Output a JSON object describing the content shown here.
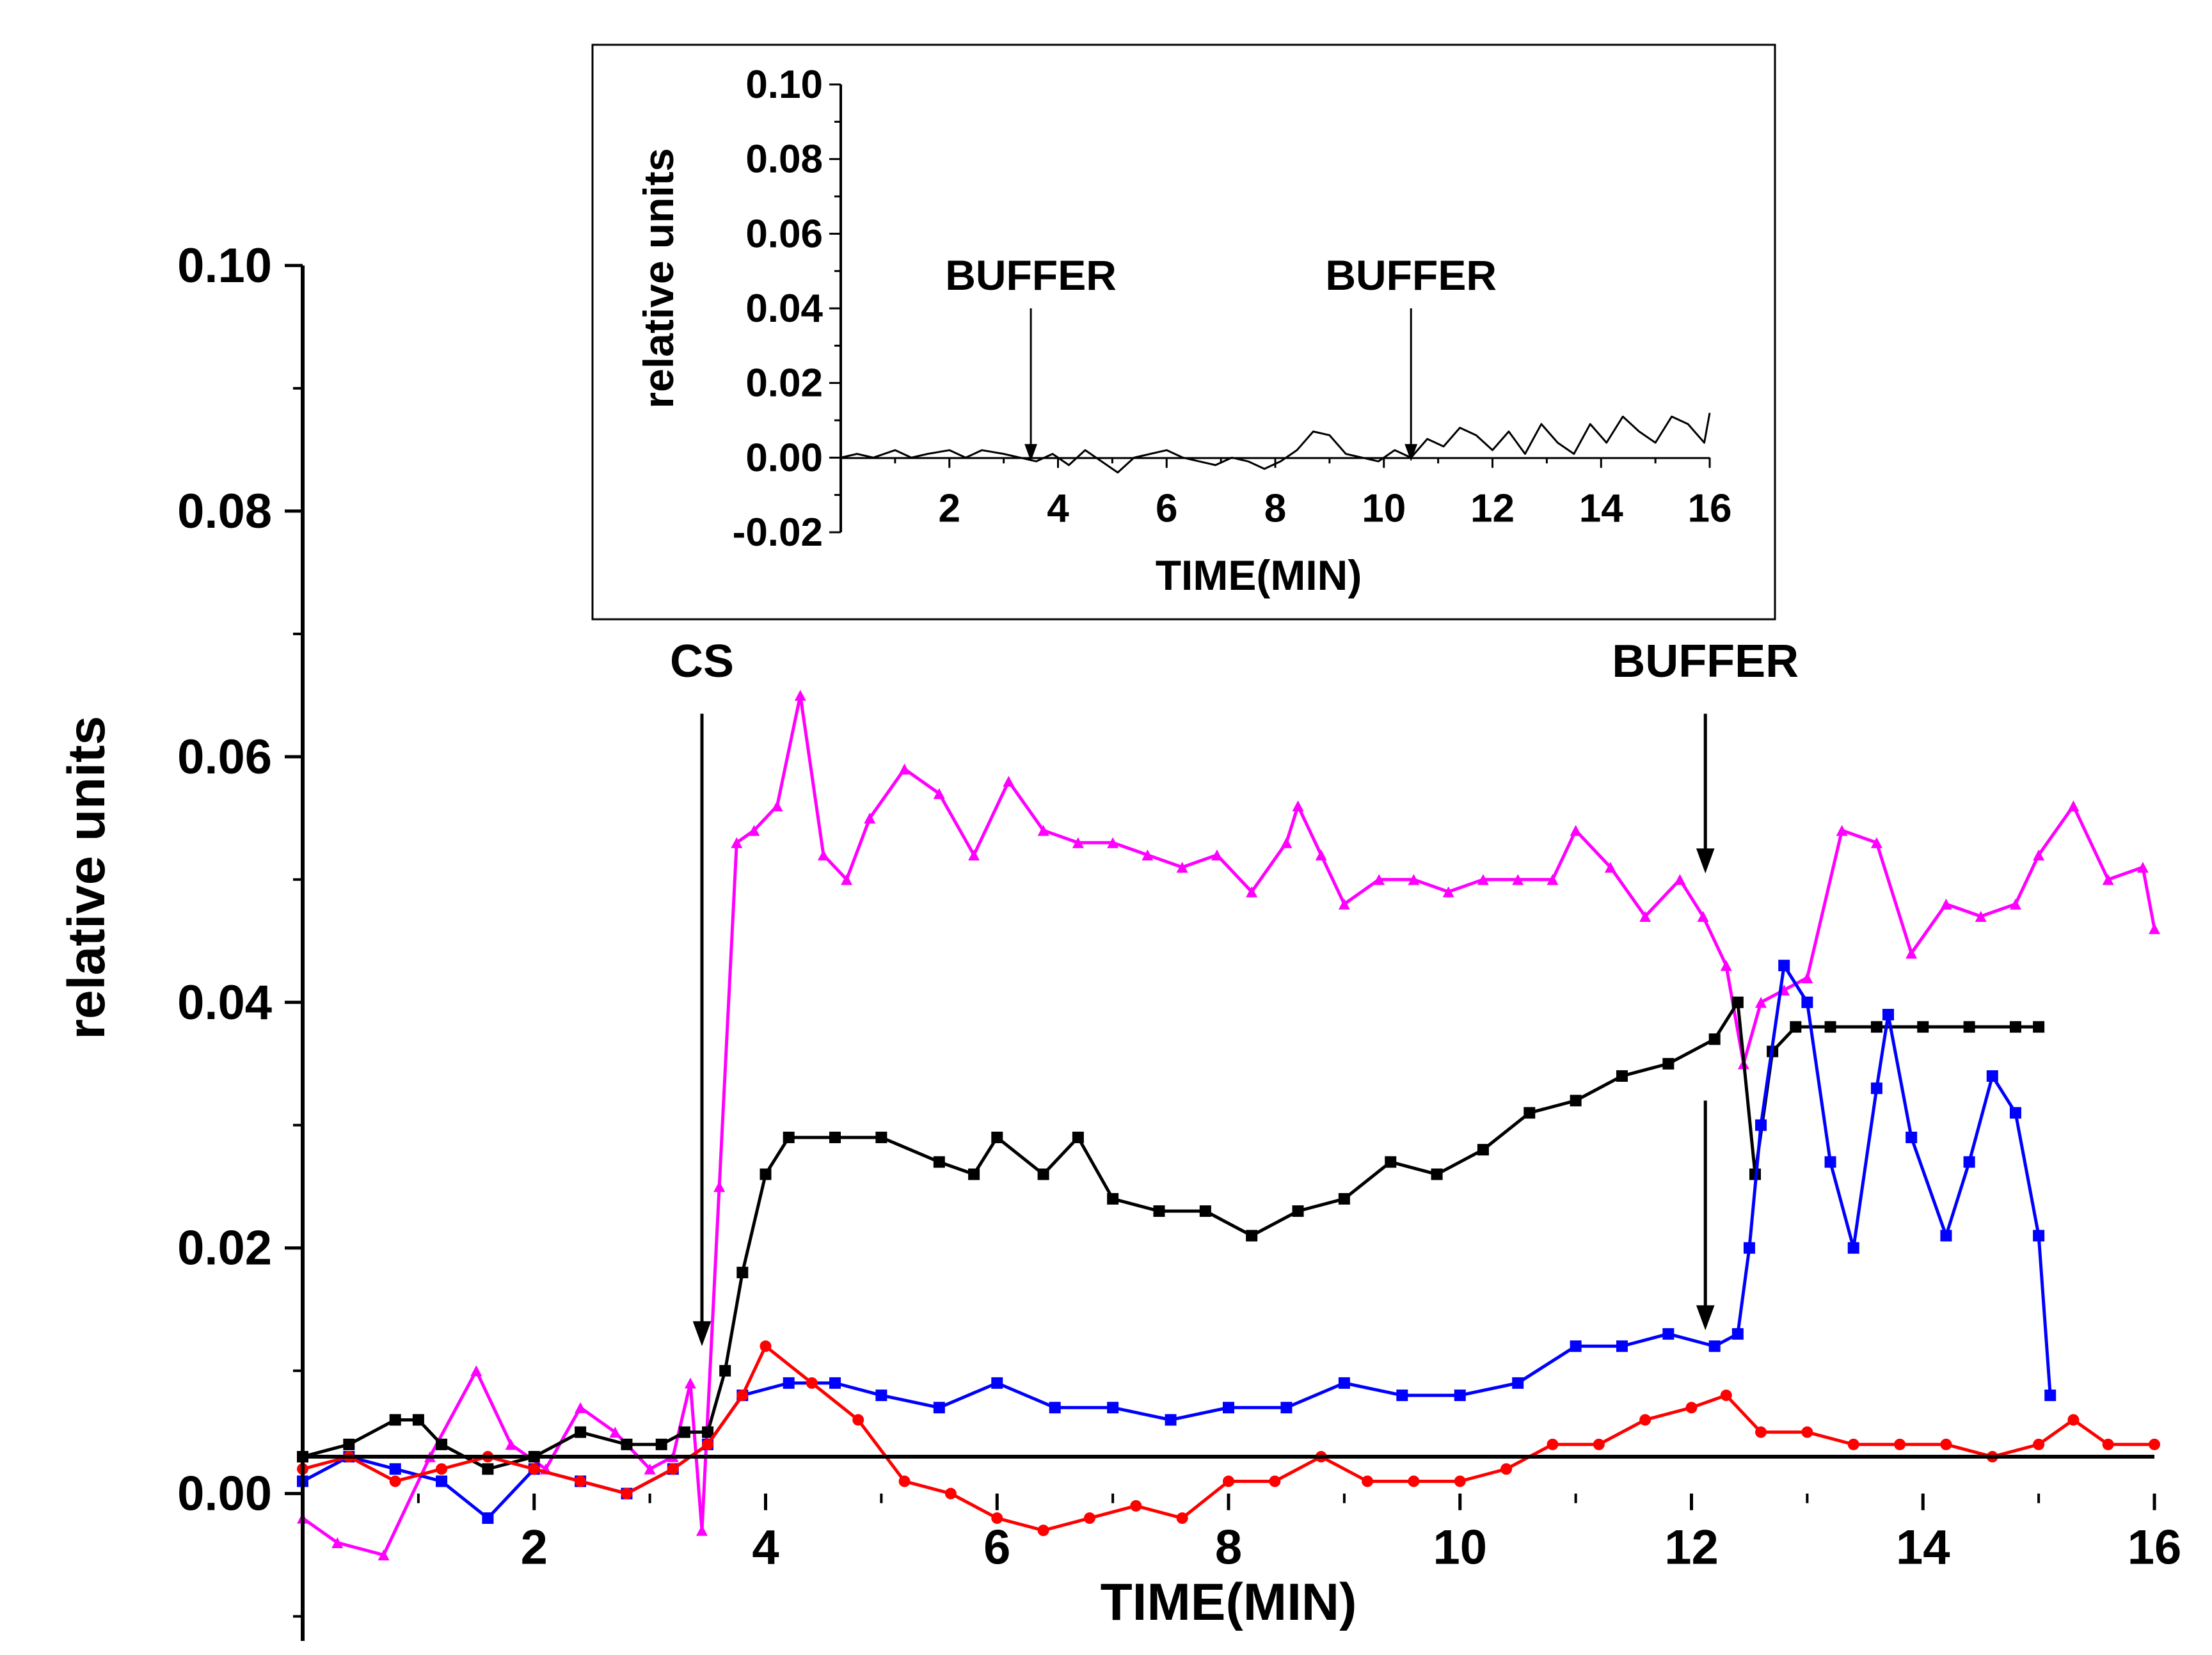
{
  "chart_data": [
    {
      "type": "line",
      "role": "main",
      "xlabel": "TIME(MIN)",
      "ylabel": "relative units",
      "xlim": [
        0,
        16
      ],
      "ylim": [
        -0.012,
        0.1
      ],
      "x_ticks": [
        {
          "value": 2,
          "label": "2"
        },
        {
          "value": 4,
          "label": "4"
        },
        {
          "value": 6,
          "label": "6"
        },
        {
          "value": 8,
          "label": "8"
        },
        {
          "value": 10,
          "label": "10"
        },
        {
          "value": 12,
          "label": "12"
        },
        {
          "value": 14,
          "label": "14"
        },
        {
          "value": 16,
          "label": "16"
        }
      ],
      "y_ticks": [
        {
          "value": 0.0,
          "label": "0.00"
        },
        {
          "value": 0.02,
          "label": "0.02"
        },
        {
          "value": 0.04,
          "label": "0.04"
        },
        {
          "value": 0.06,
          "label": "0.06"
        },
        {
          "value": 0.08,
          "label": "0.08"
        },
        {
          "value": 0.1,
          "label": "0.10"
        }
      ],
      "annotations": [
        {
          "text": "CS",
          "x": 3.45,
          "y_text": 0.0665,
          "arrow_from": 0.0635,
          "arrow_to": 0.012
        },
        {
          "text": "BUFFER",
          "x": 12.12,
          "y_text": 0.0665,
          "arrow_from": 0.0635,
          "arrow_to": 0.0505
        },
        {
          "text": "",
          "x": 12.12,
          "y_text": null,
          "arrow_from": 0.032,
          "arrow_to": 0.0133
        }
      ],
      "series": [
        {
          "name": "magenta",
          "color": "#ff00ff",
          "marker": "triangle",
          "x": [
            0,
            0.3,
            0.7,
            1.1,
            1.5,
            1.8,
            2.1,
            2.4,
            2.7,
            3.0,
            3.2,
            3.35,
            3.45,
            3.6,
            3.75,
            3.9,
            4.1,
            4.3,
            4.5,
            4.7,
            4.9,
            5.2,
            5.5,
            5.8,
            6.1,
            6.4,
            6.7,
            7.0,
            7.3,
            7.6,
            7.9,
            8.2,
            8.5,
            8.6,
            8.8,
            9.0,
            9.3,
            9.6,
            9.9,
            10.2,
            10.5,
            10.8,
            11.0,
            11.3,
            11.6,
            11.9,
            12.1,
            12.3,
            12.45,
            12.6,
            12.8,
            13.0,
            13.3,
            13.6,
            13.9,
            14.2,
            14.5,
            14.8,
            15.0,
            15.3,
            15.6,
            15.9,
            16.0
          ],
          "y": [
            -0.002,
            -0.004,
            -0.005,
            0.003,
            0.01,
            0.004,
            0.002,
            0.007,
            0.005,
            0.002,
            0.003,
            0.009,
            -0.003,
            0.025,
            0.053,
            0.054,
            0.056,
            0.065,
            0.052,
            0.05,
            0.055,
            0.059,
            0.057,
            0.052,
            0.058,
            0.054,
            0.053,
            0.053,
            0.052,
            0.051,
            0.052,
            0.049,
            0.053,
            0.056,
            0.052,
            0.048,
            0.05,
            0.05,
            0.049,
            0.05,
            0.05,
            0.05,
            0.054,
            0.051,
            0.047,
            0.05,
            0.047,
            0.043,
            0.035,
            0.04,
            0.041,
            0.042,
            0.054,
            0.053,
            0.044,
            0.048,
            0.047,
            0.048,
            0.052,
            0.056,
            0.05,
            0.051,
            0.046
          ]
        },
        {
          "name": "black",
          "color": "#000000",
          "marker": "square",
          "x": [
            0,
            0.4,
            0.8,
            1.0,
            1.2,
            1.6,
            2.0,
            2.4,
            2.8,
            3.1,
            3.3,
            3.5,
            3.65,
            3.8,
            4.0,
            4.2,
            4.6,
            5.0,
            5.5,
            5.8,
            6.0,
            6.4,
            6.7,
            7.0,
            7.4,
            7.8,
            8.2,
            8.6,
            9.0,
            9.4,
            9.8,
            10.2,
            10.6,
            11.0,
            11.4,
            11.8,
            12.2,
            12.4,
            12.55,
            12.7,
            12.9,
            13.2,
            13.6,
            14.0,
            14.4,
            14.8,
            15.0
          ],
          "y": [
            0.003,
            0.004,
            0.006,
            0.006,
            0.004,
            0.002,
            0.003,
            0.005,
            0.004,
            0.004,
            0.005,
            0.005,
            0.01,
            0.018,
            0.026,
            0.029,
            0.029,
            0.029,
            0.027,
            0.026,
            0.029,
            0.026,
            0.029,
            0.024,
            0.023,
            0.023,
            0.021,
            0.023,
            0.024,
            0.027,
            0.026,
            0.028,
            0.031,
            0.032,
            0.034,
            0.035,
            0.037,
            0.04,
            0.026,
            0.036,
            0.038,
            0.038,
            0.038,
            0.038,
            0.038,
            0.038,
            0.038
          ]
        },
        {
          "name": "blue",
          "color": "#0000ff",
          "marker": "square",
          "x": [
            0,
            0.4,
            0.8,
            1.2,
            1.6,
            2.0,
            2.4,
            2.8,
            3.2,
            3.5,
            3.8,
            4.2,
            4.6,
            5.0,
            5.5,
            6.0,
            6.5,
            7.0,
            7.5,
            8.0,
            8.5,
            9.0,
            9.5,
            10.0,
            10.5,
            11.0,
            11.4,
            11.8,
            12.2,
            12.4,
            12.5,
            12.6,
            12.8,
            13.0,
            13.2,
            13.4,
            13.6,
            13.7,
            13.9,
            14.2,
            14.4,
            14.6,
            14.8,
            15.0,
            15.1
          ],
          "y": [
            0.001,
            0.003,
            0.002,
            0.001,
            -0.002,
            0.002,
            0.001,
            0.0,
            0.002,
            0.004,
            0.008,
            0.009,
            0.009,
            0.008,
            0.007,
            0.009,
            0.007,
            0.007,
            0.006,
            0.007,
            0.007,
            0.009,
            0.008,
            0.008,
            0.009,
            0.012,
            0.012,
            0.013,
            0.012,
            0.013,
            0.02,
            0.03,
            0.043,
            0.04,
            0.027,
            0.02,
            0.033,
            0.039,
            0.029,
            0.021,
            0.027,
            0.034,
            0.031,
            0.021,
            0.008
          ]
        },
        {
          "name": "red",
          "color": "#ff0000",
          "marker": "circle",
          "x": [
            0,
            0.4,
            0.8,
            1.2,
            1.6,
            2.0,
            2.4,
            2.8,
            3.2,
            3.5,
            3.8,
            4.0,
            4.4,
            4.8,
            5.2,
            5.6,
            6.0,
            6.4,
            6.8,
            7.2,
            7.6,
            8.0,
            8.4,
            8.8,
            9.2,
            9.6,
            10.0,
            10.4,
            10.8,
            11.2,
            11.6,
            12.0,
            12.3,
            12.6,
            13.0,
            13.4,
            13.8,
            14.2,
            14.6,
            15.0,
            15.3,
            15.6,
            16.0
          ],
          "y": [
            0.002,
            0.003,
            0.001,
            0.002,
            0.003,
            0.002,
            0.001,
            0.0,
            0.002,
            0.004,
            0.008,
            0.012,
            0.009,
            0.006,
            0.001,
            0.0,
            -0.002,
            -0.003,
            -0.002,
            -0.001,
            -0.002,
            0.001,
            0.001,
            0.003,
            0.001,
            0.001,
            0.001,
            0.002,
            0.004,
            0.004,
            0.006,
            0.007,
            0.008,
            0.005,
            0.005,
            0.004,
            0.004,
            0.004,
            0.003,
            0.004,
            0.006,
            0.004,
            0.004
          ]
        }
      ]
    },
    {
      "type": "line",
      "role": "inset",
      "xlabel": "TIME(MIN)",
      "ylabel": "relative units",
      "xlim": [
        0,
        16
      ],
      "ylim": [
        -0.02,
        0.1
      ],
      "x_ticks": [
        {
          "value": 2,
          "label": "2"
        },
        {
          "value": 4,
          "label": "4"
        },
        {
          "value": 6,
          "label": "6"
        },
        {
          "value": 8,
          "label": "8"
        },
        {
          "value": 10,
          "label": "10"
        },
        {
          "value": 12,
          "label": "12"
        },
        {
          "value": 14,
          "label": "14"
        },
        {
          "value": 16,
          "label": "16"
        }
      ],
      "y_ticks": [
        {
          "value": -0.02,
          "label": "-0.02"
        },
        {
          "value": 0.0,
          "label": "0.00"
        },
        {
          "value": 0.02,
          "label": "0.02"
        },
        {
          "value": 0.04,
          "label": "0.04"
        },
        {
          "value": 0.06,
          "label": "0.06"
        },
        {
          "value": 0.08,
          "label": "0.08"
        },
        {
          "value": 0.1,
          "label": "0.10"
        }
      ],
      "annotations": [
        {
          "text": "BUFFER",
          "x": 3.5,
          "y_text": 0.045,
          "arrow_from": 0.04,
          "arrow_to": -0.001
        },
        {
          "text": "BUFFER",
          "x": 10.5,
          "y_text": 0.045,
          "arrow_from": 0.04,
          "arrow_to": -0.001
        }
      ],
      "series": [
        {
          "name": "baseline",
          "color": "#000000",
          "marker": "none",
          "x": [
            0,
            0.3,
            0.6,
            1.0,
            1.3,
            1.6,
            2.0,
            2.3,
            2.6,
            3.0,
            3.3,
            3.6,
            3.9,
            4.2,
            4.5,
            4.8,
            5.1,
            5.4,
            5.7,
            6.0,
            6.3,
            6.6,
            6.9,
            7.2,
            7.5,
            7.8,
            8.1,
            8.4,
            8.7,
            9.0,
            9.3,
            9.6,
            9.9,
            10.2,
            10.5,
            10.8,
            11.1,
            11.4,
            11.7,
            12.0,
            12.3,
            12.6,
            12.9,
            13.2,
            13.5,
            13.8,
            14.1,
            14.4,
            14.7,
            15.0,
            15.3,
            15.6,
            15.9,
            16.0
          ],
          "y": [
            0.0,
            0.001,
            0.0,
            0.002,
            0.0,
            0.001,
            0.002,
            0.0,
            0.002,
            0.001,
            0.0,
            -0.001,
            0.001,
            -0.002,
            0.002,
            -0.001,
            -0.004,
            0.0,
            0.001,
            0.002,
            0.0,
            -0.001,
            -0.002,
            0.0,
            -0.001,
            -0.003,
            -0.001,
            0.002,
            0.007,
            0.006,
            0.001,
            0.0,
            -0.001,
            0.002,
            0.0,
            0.005,
            0.003,
            0.008,
            0.006,
            0.002,
            0.007,
            0.001,
            0.009,
            0.004,
            0.001,
            0.009,
            0.004,
            0.011,
            0.007,
            0.004,
            0.011,
            0.009,
            0.004,
            0.012
          ]
        }
      ]
    }
  ]
}
